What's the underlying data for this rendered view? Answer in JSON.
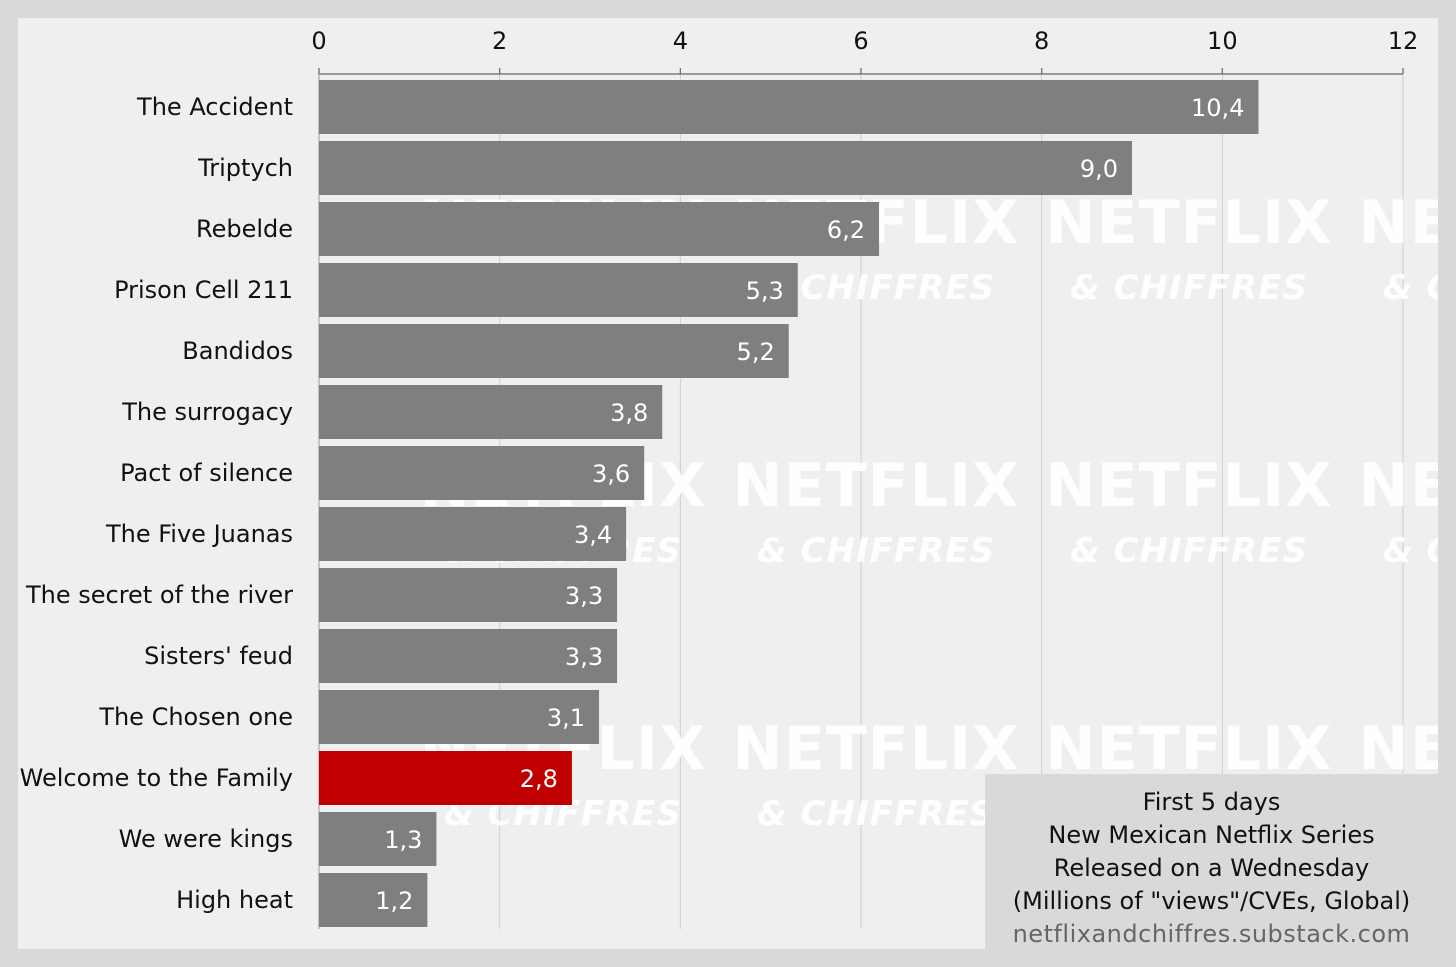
{
  "chart_data": {
    "type": "bar",
    "orientation": "horizontal",
    "categories": [
      "The Accident",
      "Triptych",
      "Rebelde",
      "Prison Cell 211",
      "Bandidos",
      "The surrogacy",
      "Pact of silence",
      "The Five Juanas",
      "The secret of the river",
      "Sisters' feud",
      "The Chosen one",
      "Welcome to the Family",
      "We were kings",
      "High heat"
    ],
    "values": [
      10.4,
      9.0,
      6.2,
      5.3,
      5.2,
      3.8,
      3.6,
      3.4,
      3.3,
      3.3,
      3.1,
      2.8,
      1.3,
      1.2
    ],
    "value_labels": [
      "10,4",
      "9,0",
      "6,2",
      "5,3",
      "5,2",
      "3,8",
      "3,6",
      "3,4",
      "3,3",
      "3,3",
      "3,1",
      "2,8",
      "1,3",
      "1,2"
    ],
    "highlight_category": "Welcome to the Family",
    "xlim": [
      0,
      12
    ],
    "x_ticks": [
      0,
      2,
      4,
      6,
      8,
      10,
      12
    ],
    "x_axis_position": "top",
    "grid": true,
    "colors": {
      "bar": "#7f7f7f",
      "highlight": "#c00000",
      "grid": "#cfcfcf",
      "background": "#efefef"
    }
  },
  "legend_box": {
    "lines": [
      "First 5 days",
      "New Mexican Netflix Series",
      "Released on a Wednesday",
      "(Millions of \"views\"/CVEs, Global)"
    ],
    "source": "netflixandchiffres.substack.com",
    "placement": "bottom-right"
  },
  "watermark": {
    "brand": "NETFLIX",
    "sub": "& CHIFFRES"
  }
}
